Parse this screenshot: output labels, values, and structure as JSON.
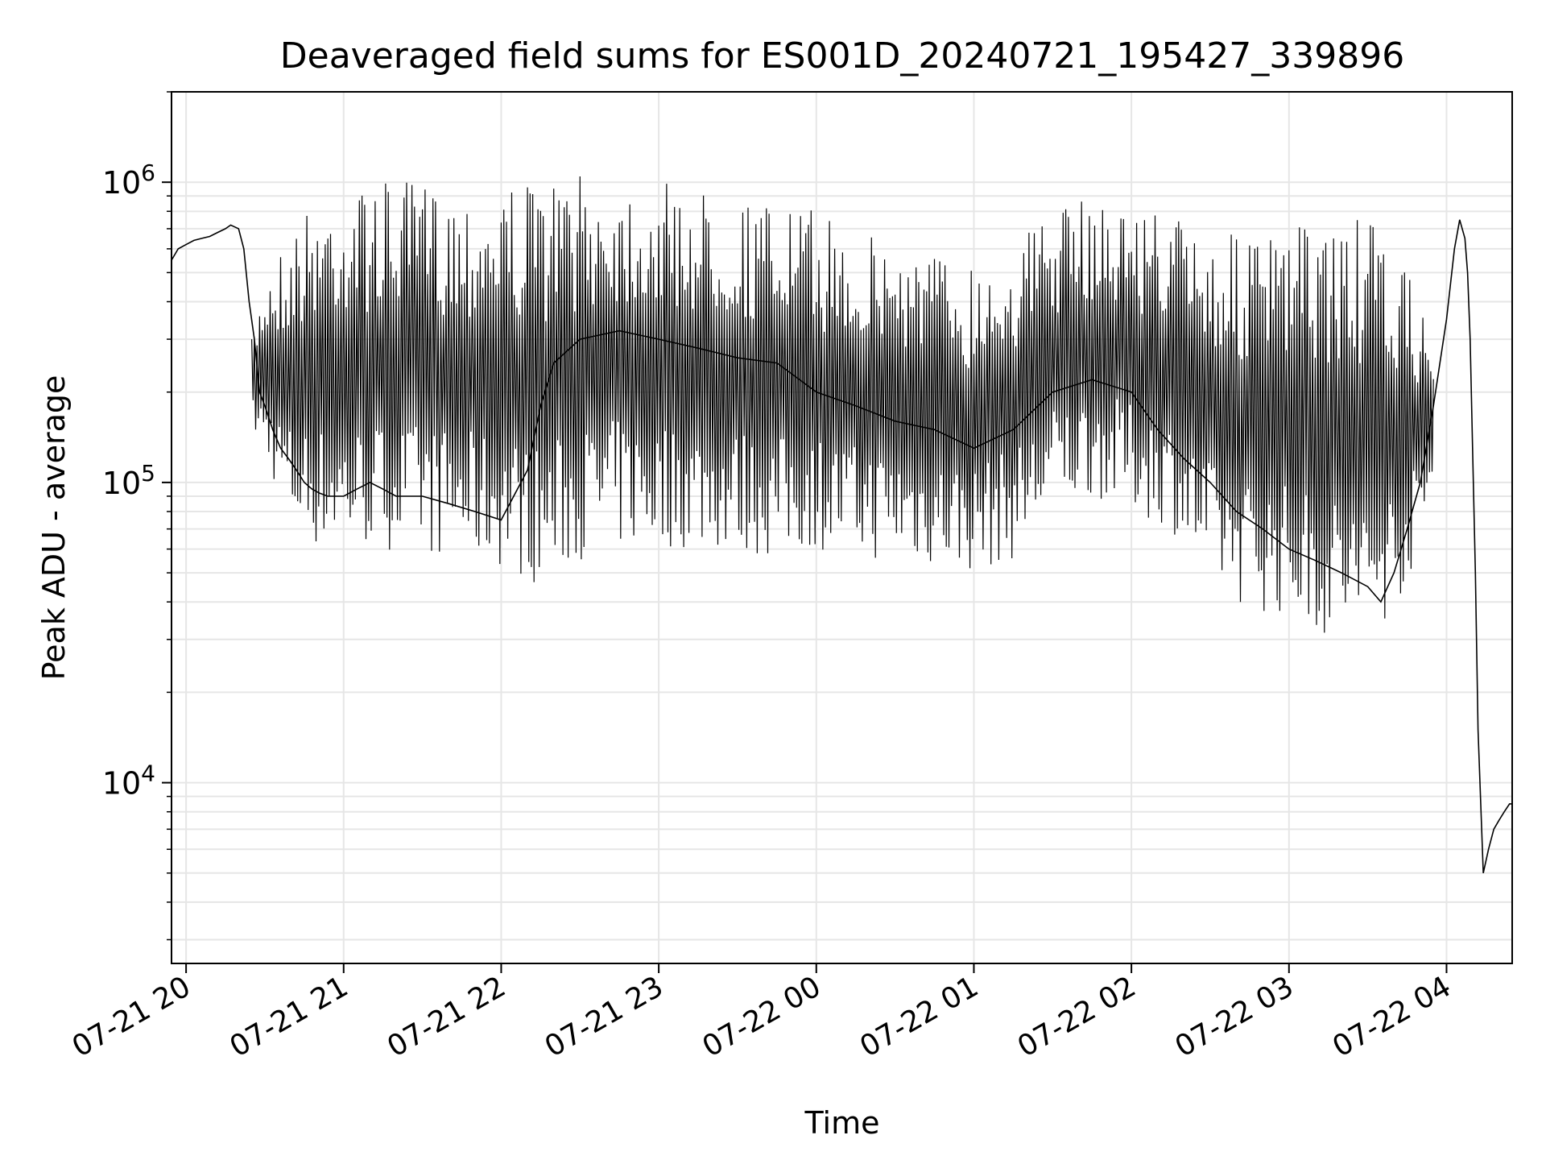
{
  "chart_data": {
    "type": "line",
    "title": "Deaveraged field sums for ES001D_20240721_195427_339896",
    "xlabel": "Time",
    "ylabel": "Peak ADU - average",
    "yscale": "log",
    "ylim": [
      2500,
      2000000
    ],
    "xlim": [
      "2024-07-21 19:54:27",
      "2024-07-22 04:25"
    ],
    "grid": true,
    "line_color": "#000000",
    "grid_color": "#e6e6e6",
    "x_ticks": [
      {
        "value": "2024-07-21 20:00",
        "label": "07-21 20"
      },
      {
        "value": "2024-07-21 21:00",
        "label": "07-21 21"
      },
      {
        "value": "2024-07-21 22:00",
        "label": "07-21 22"
      },
      {
        "value": "2024-07-21 23:00",
        "label": "07-21 23"
      },
      {
        "value": "2024-07-22 00:00",
        "label": "07-22 00"
      },
      {
        "value": "2024-07-22 01:00",
        "label": "07-22 01"
      },
      {
        "value": "2024-07-22 02:00",
        "label": "07-22 02"
      },
      {
        "value": "2024-07-22 03:00",
        "label": "07-22 03"
      },
      {
        "value": "2024-07-22 04:00",
        "label": "07-22 04"
      }
    ],
    "y_ticks": [
      {
        "value": 10000,
        "base": "10",
        "exp": "4"
      },
      {
        "value": 100000,
        "base": "10",
        "exp": "5"
      },
      {
        "value": 1000000,
        "base": "10",
        "exp": "6"
      }
    ],
    "series": [
      {
        "x": [
          "2024-07-21 19:54:27",
          "2024-07-21 19:57",
          "2024-07-21 20:00",
          "2024-07-21 20:03",
          "2024-07-21 20:06",
          "2024-07-21 20:09",
          "2024-07-21 20:12",
          "2024-07-21 20:15",
          "2024-07-21 20:17",
          "2024-07-21 20:20",
          "2024-07-21 20:22",
          "2024-07-21 20:24",
          "2024-07-21 20:26",
          "2024-07-21 20:28",
          "2024-07-21 20:30",
          "2024-07-21 20:33",
          "2024-07-21 20:36",
          "2024-07-21 20:39",
          "2024-07-21 20:42",
          "2024-07-21 20:45",
          "2024-07-21 20:48",
          "2024-07-21 20:51",
          "2024-07-21 20:54",
          "2024-07-21 20:57",
          "2024-07-21 21:00",
          "2024-07-21 21:05",
          "2024-07-21 21:10",
          "2024-07-21 21:15",
          "2024-07-21 21:20",
          "2024-07-21 21:30",
          "2024-07-21 21:40",
          "2024-07-21 21:50",
          "2024-07-21 22:00",
          "2024-07-21 22:10",
          "2024-07-21 22:15",
          "2024-07-21 22:20",
          "2024-07-21 22:30",
          "2024-07-21 22:45",
          "2024-07-21 23:00",
          "2024-07-21 23:15",
          "2024-07-21 23:30",
          "2024-07-21 23:45",
          "2024-07-22 00:00",
          "2024-07-22 00:15",
          "2024-07-22 00:30",
          "2024-07-22 00:45",
          "2024-07-22 01:00",
          "2024-07-22 01:15",
          "2024-07-22 01:30",
          "2024-07-22 01:45",
          "2024-07-22 02:00",
          "2024-07-22 02:10",
          "2024-07-22 02:20",
          "2024-07-22 02:30",
          "2024-07-22 02:40",
          "2024-07-22 02:50",
          "2024-07-22 03:00",
          "2024-07-22 03:10",
          "2024-07-22 03:20",
          "2024-07-22 03:30",
          "2024-07-22 03:35",
          "2024-07-22 03:40",
          "2024-07-22 03:45",
          "2024-07-22 03:50",
          "2024-07-22 03:55",
          "2024-07-22 04:00",
          "2024-07-22 04:03",
          "2024-07-22 04:05",
          "2024-07-22 04:07",
          "2024-07-22 04:08",
          "2024-07-22 04:09",
          "2024-07-22 04:10",
          "2024-07-22 04:11",
          "2024-07-22 04:12",
          "2024-07-22 04:14",
          "2024-07-22 04:16",
          "2024-07-22 04:18",
          "2024-07-22 04:20",
          "2024-07-22 04:22",
          "2024-07-22 04:24",
          "2024-07-22 04:25"
        ],
        "values": [
          550000,
          600000,
          620000,
          640000,
          650000,
          660000,
          680000,
          700000,
          720000,
          700000,
          600000,
          400000,
          300000,
          200000,
          180000,
          150000,
          130000,
          120000,
          110000,
          100000,
          95000,
          92000,
          90000,
          90000,
          90000,
          95000,
          100000,
          95000,
          90000,
          90000,
          85000,
          80000,
          75000,
          110000,
          180000,
          250000,
          300000,
          320000,
          300000,
          280000,
          260000,
          250000,
          200000,
          180000,
          160000,
          150000,
          130000,
          150000,
          200000,
          220000,
          200000,
          150000,
          120000,
          100000,
          80000,
          70000,
          60000,
          55000,
          50000,
          45000,
          40000,
          50000,
          70000,
          100000,
          180000,
          350000,
          600000,
          750000,
          650000,
          500000,
          300000,
          120000,
          50000,
          15000,
          5000,
          6000,
          7000,
          7500,
          8000,
          8500,
          8500
        ]
      }
    ],
    "envelope": {
      "x": [
        "2024-07-21 20:25",
        "2024-07-21 20:30",
        "2024-07-21 20:40",
        "2024-07-21 20:50",
        "2024-07-21 21:00",
        "2024-07-21 21:15",
        "2024-07-21 21:30",
        "2024-07-21 21:45",
        "2024-07-21 22:00",
        "2024-07-21 22:15",
        "2024-07-21 22:30",
        "2024-07-21 22:45",
        "2024-07-21 23:00",
        "2024-07-21 23:15",
        "2024-07-21 23:30",
        "2024-07-21 23:45",
        "2024-07-22 00:00",
        "2024-07-22 00:15",
        "2024-07-22 00:30",
        "2024-07-22 00:45",
        "2024-07-22 01:00",
        "2024-07-22 01:15",
        "2024-07-22 01:30",
        "2024-07-22 01:45",
        "2024-07-22 02:00",
        "2024-07-22 02:15",
        "2024-07-22 02:30",
        "2024-07-22 02:45",
        "2024-07-22 03:00",
        "2024-07-22 03:15",
        "2024-07-22 03:30",
        "2024-07-22 03:45",
        "2024-07-22 03:55"
      ],
      "high": [
        300000,
        500000,
        700000,
        900000,
        950000,
        1000000,
        1000000,
        950000,
        1000000,
        1000000,
        1050000,
        1050000,
        1000000,
        950000,
        900000,
        850000,
        800000,
        700000,
        650000,
        600000,
        550000,
        650000,
        800000,
        900000,
        850000,
        800000,
        700000,
        650000,
        700000,
        750000,
        750000,
        500000,
        300000
      ],
      "low": [
        150000,
        120000,
        70000,
        60000,
        60000,
        60000,
        58000,
        55000,
        52000,
        45000,
        55000,
        60000,
        60000,
        60000,
        58000,
        55000,
        60000,
        55000,
        55000,
        52000,
        50000,
        55000,
        80000,
        90000,
        80000,
        70000,
        45000,
        38000,
        35000,
        30000,
        28000,
        45000,
        90000
      ]
    }
  }
}
